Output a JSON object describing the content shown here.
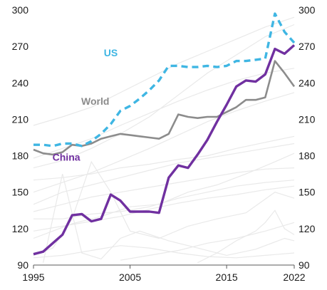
{
  "chart_data": {
    "type": "line",
    "title": "",
    "xlabel": "",
    "ylabel": "",
    "xlim": [
      1995,
      2022
    ],
    "ylim": [
      90,
      300
    ],
    "x_ticks": [
      "1995",
      "2005",
      "2015",
      "2022"
    ],
    "y_ticks": [
      "90",
      "120",
      "150",
      "180",
      "210",
      "240",
      "270",
      "300"
    ],
    "grid": false,
    "dual_y_axis": true,
    "colors": {
      "US": "#3fb6e3",
      "World": "#8c8c8c",
      "China": "#7030a0",
      "background_lines": "#e9e9e9",
      "axis": "#595959"
    },
    "series": [
      {
        "name": "US",
        "style": "dashed",
        "x": [
          1995,
          1996,
          1997,
          1998,
          1999,
          2000,
          2001,
          2002,
          2003,
          2004,
          2005,
          2006,
          2007,
          2008,
          2009,
          2010,
          2011,
          2012,
          2013,
          2014,
          2015,
          2016,
          2017,
          2018,
          2019,
          2020,
          2021,
          2022
        ],
        "values": [
          189,
          189,
          188,
          190,
          190,
          188,
          192,
          198,
          206,
          217,
          221,
          227,
          234,
          242,
          254,
          254,
          253,
          253,
          254,
          253,
          254,
          258,
          258,
          259,
          260,
          297,
          282,
          273
        ]
      },
      {
        "name": "World",
        "style": "solid",
        "x": [
          1995,
          1996,
          1997,
          1998,
          1999,
          2000,
          2001,
          2002,
          2003,
          2004,
          2005,
          2006,
          2007,
          2008,
          2009,
          2010,
          2011,
          2012,
          2013,
          2014,
          2015,
          2016,
          2017,
          2018,
          2019,
          2020,
          2021,
          2022
        ],
        "values": [
          185,
          182,
          181,
          183,
          189,
          188,
          190,
          194,
          196,
          198,
          197,
          196,
          195,
          194,
          198,
          214,
          212,
          211,
          212,
          212,
          216,
          220,
          226,
          226,
          228,
          258,
          248,
          237
        ]
      },
      {
        "name": "China",
        "style": "solid",
        "x": [
          1995,
          1996,
          1997,
          1998,
          1999,
          2000,
          2001,
          2002,
          2003,
          2004,
          2005,
          2006,
          2007,
          2008,
          2009,
          2010,
          2011,
          2012,
          2013,
          2014,
          2015,
          2016,
          2017,
          2018,
          2019,
          2020,
          2021,
          2022
        ],
        "values": [
          99,
          101,
          108,
          115,
          131,
          132,
          126,
          128,
          148,
          143,
          134,
          134,
          134,
          133,
          162,
          172,
          170,
          181,
          193,
          208,
          222,
          237,
          242,
          241,
          247,
          268,
          264,
          271
        ]
      }
    ],
    "labels": [
      {
        "text": "US",
        "series": "US",
        "anchor_x": 2003.0,
        "anchor_y": 262
      },
      {
        "text": "World",
        "series": "World",
        "anchor_x": 2001.4,
        "anchor_y": 222
      },
      {
        "text": "China",
        "series": "China",
        "anchor_x": 1998.4,
        "anchor_y": 176
      }
    ],
    "background_series": [
      {
        "x": [
          1995,
          1998,
          2001,
          2004,
          2007,
          2010,
          2013,
          2016,
          2019,
          2022
        ],
        "values": [
          170,
          176,
          186,
          198,
          212,
          230,
          248,
          263,
          278,
          288
        ]
      },
      {
        "x": [
          1995,
          1998,
          2001,
          2004,
          2007,
          2010,
          2013,
          2016,
          2019,
          2022
        ],
        "values": [
          150,
          158,
          166,
          176,
          186,
          197,
          208,
          217,
          225,
          232
        ]
      },
      {
        "x": [
          1995,
          1997,
          1999,
          2002,
          2005,
          2008,
          2011,
          2014,
          2017,
          2020,
          2022
        ],
        "values": [
          112,
          118,
          124,
          130,
          138,
          140,
          150,
          156,
          165,
          175,
          182
        ]
      },
      {
        "x": [
          1995,
          1998,
          2001,
          2004,
          2007,
          2010,
          2013,
          2016,
          2019,
          2022
        ],
        "values": [
          140,
          150,
          156,
          162,
          168,
          174,
          178,
          182,
          186,
          190
        ]
      },
      {
        "x": [
          1995,
          1997,
          1999,
          2001,
          2003,
          2005,
          2008,
          2011,
          2014,
          2017,
          2020,
          2022
        ],
        "values": [
          98,
          104,
          128,
          175,
          150,
          118,
          112,
          122,
          128,
          133,
          150,
          145
        ]
      },
      {
        "x": [
          1996,
          1998,
          2000,
          2002,
          2004,
          2006,
          2009,
          2012,
          2015,
          2018,
          2021,
          2022
        ],
        "values": [
          92,
          165,
          100,
          95,
          112,
          118,
          110,
          104,
          98,
          103,
          112,
          110
        ]
      },
      {
        "x": [
          1995,
          1998,
          2001,
          2004,
          2007,
          2010,
          2013,
          2016,
          2019,
          2022
        ],
        "values": [
          128,
          128,
          132,
          134,
          138,
          145,
          150,
          155,
          158,
          160
        ]
      },
      {
        "x": [
          1995,
          1998,
          2001,
          2004,
          2007,
          2010,
          2013,
          2016,
          2019,
          2022
        ],
        "values": [
          160,
          162,
          165,
          170,
          173,
          177,
          180,
          186,
          191,
          196
        ]
      },
      {
        "x": [
          1995,
          1998,
          2001,
          2004,
          2007,
          2010,
          2013,
          2016,
          2019,
          2022
        ],
        "values": [
          205,
          212,
          220,
          232,
          244,
          256,
          266,
          276,
          286,
          294
        ]
      },
      {
        "x": [
          1995,
          1998,
          2001,
          2004,
          2007,
          2010,
          2013,
          2016,
          2019,
          2022
        ],
        "values": [
          96,
          98,
          102,
          106,
          104,
          100,
          97,
          96,
          98,
          100
        ]
      },
      {
        "x": [
          2012,
          2014,
          2016,
          2018,
          2019,
          2020,
          2021,
          2022
        ],
        "values": [
          92,
          100,
          110,
          118,
          125,
          135,
          120,
          115
        ]
      },
      {
        "x": [
          1995,
          1998,
          2001,
          2004,
          2007,
          2010,
          2013,
          2016,
          2019,
          2022
        ],
        "values": [
          118,
          122,
          126,
          130,
          136,
          141,
          145,
          148,
          152,
          155
        ]
      },
      {
        "x": [
          1995,
          1998,
          2001,
          2004,
          2007,
          2010,
          2013,
          2016,
          2019,
          2022
        ],
        "values": [
          178,
          186,
          194,
          205,
          215,
          225,
          234,
          242,
          248,
          252
        ]
      },
      {
        "x": [
          1995,
          1998,
          2001,
          2004,
          2007,
          2010,
          2013,
          2016,
          2019,
          2022
        ],
        "values": [
          134,
          140,
          146,
          150,
          154,
          158,
          162,
          166,
          169,
          170
        ]
      },
      {
        "x": [
          2004,
          2007,
          2010,
          2013,
          2016,
          2019,
          2022
        ],
        "values": [
          94,
          98,
          102,
          108,
          112,
          118,
          125
        ]
      }
    ]
  }
}
